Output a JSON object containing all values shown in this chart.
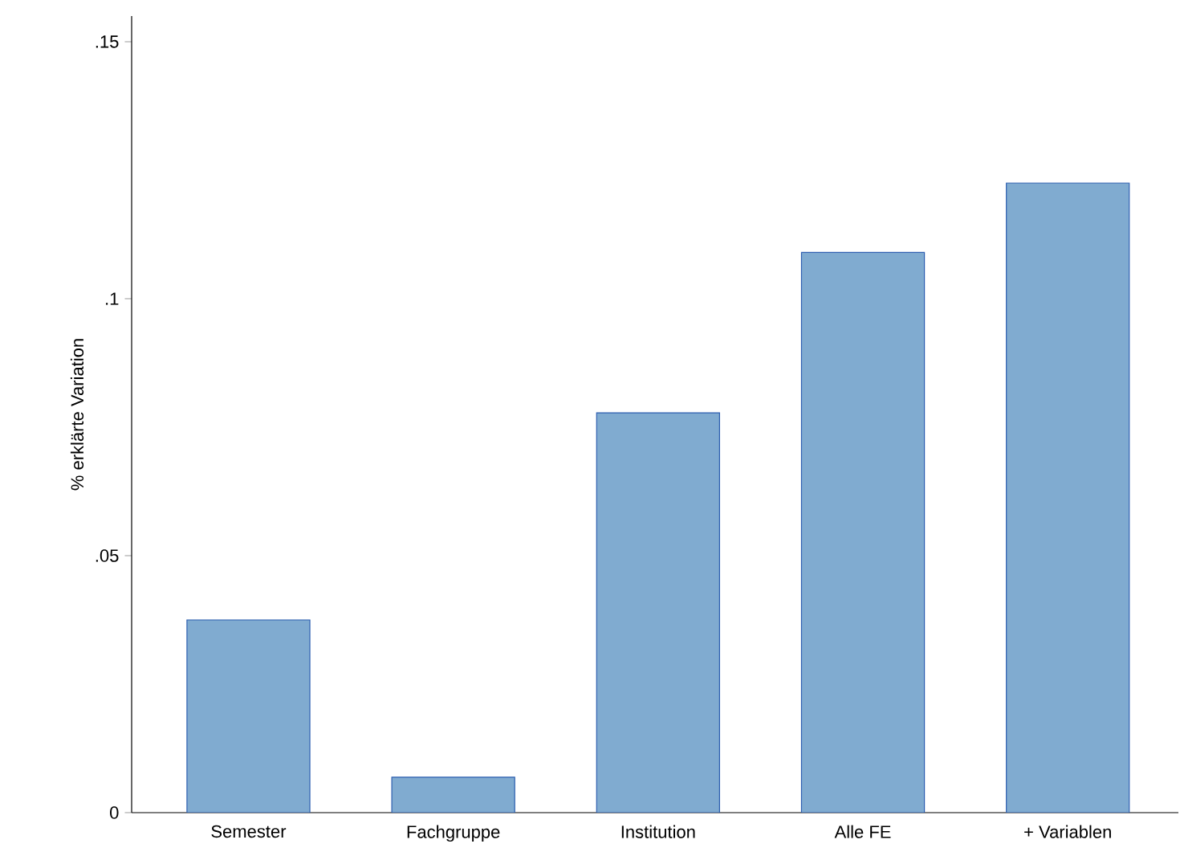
{
  "chart_data": {
    "type": "bar",
    "ylabel": "% erklärte Variation",
    "categories": [
      "Semester",
      "Fachgruppe",
      "Institution",
      "Alle FE",
      "+ Variablen"
    ],
    "values": [
      0.0375,
      0.0069,
      0.0778,
      0.109,
      0.1225
    ],
    "color": "#80abd0",
    "ylim": [
      0,
      0.155
    ],
    "yticks": [
      0,
      {
        "value": 0.05,
        "label": ".05"
      },
      {
        "value": 0.1,
        "label": ".1"
      },
      {
        "value": 0.15,
        "label": ".15"
      }
    ],
    "grid": false
  }
}
